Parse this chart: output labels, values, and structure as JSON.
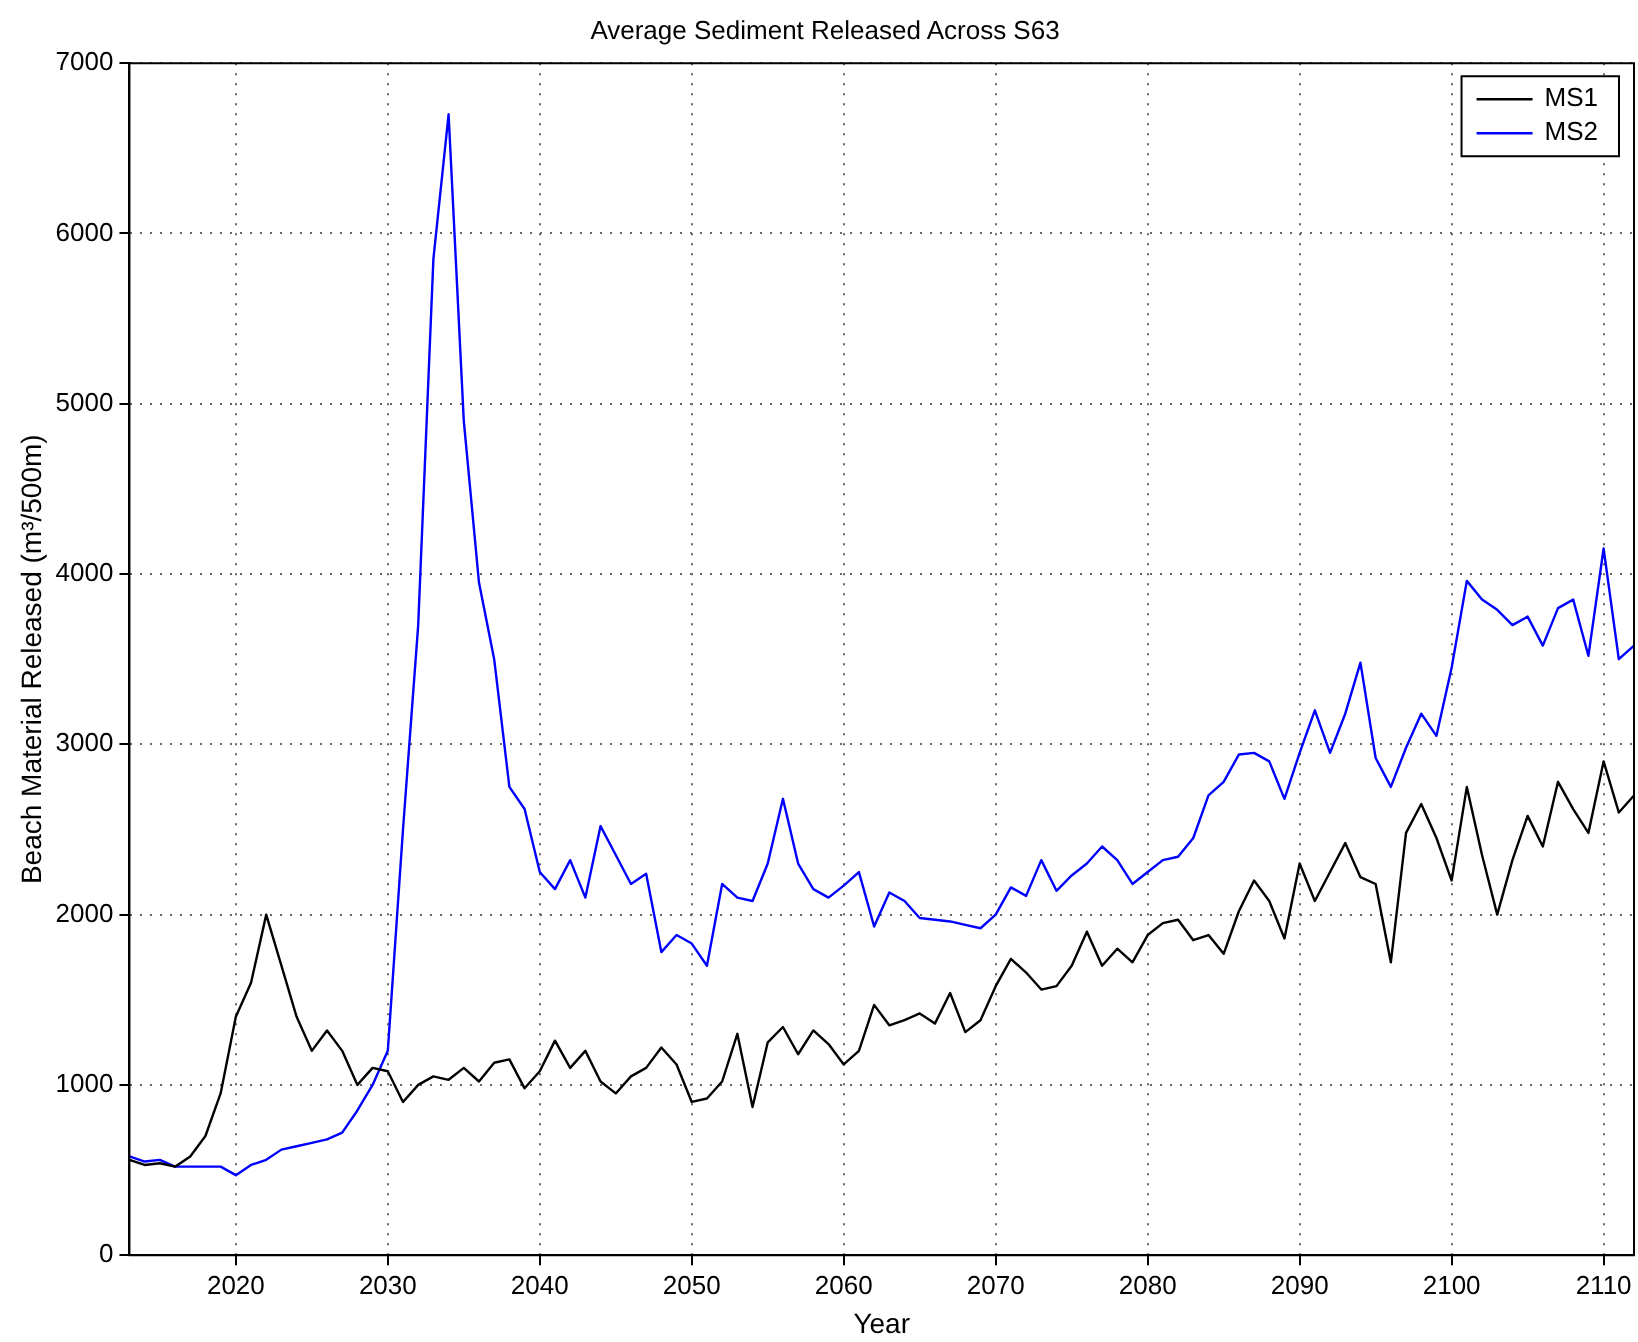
{
  "chart_data": {
    "type": "line",
    "title": "Average Sediment Released Across S63",
    "xlabel": "Year",
    "ylabel": "Beach Material Released (m³/500m)",
    "x": [
      2013,
      2014,
      2015,
      2016,
      2017,
      2018,
      2019,
      2020,
      2021,
      2022,
      2023,
      2024,
      2025,
      2026,
      2027,
      2028,
      2029,
      2030,
      2031,
      2032,
      2033,
      2034,
      2035,
      2036,
      2037,
      2038,
      2039,
      2040,
      2041,
      2042,
      2043,
      2044,
      2045,
      2046,
      2047,
      2048,
      2049,
      2050,
      2051,
      2052,
      2053,
      2054,
      2055,
      2056,
      2057,
      2058,
      2059,
      2060,
      2061,
      2062,
      2063,
      2064,
      2065,
      2066,
      2067,
      2068,
      2069,
      2070,
      2071,
      2072,
      2073,
      2074,
      2075,
      2076,
      2077,
      2078,
      2079,
      2080,
      2081,
      2082,
      2083,
      2084,
      2085,
      2086,
      2087,
      2088,
      2089,
      2090,
      2091,
      2092,
      2093,
      2094,
      2095,
      2096,
      2097,
      2098,
      2099,
      2100,
      2101,
      2102,
      2103,
      2104,
      2105,
      2106,
      2107,
      2108,
      2109,
      2110,
      2111,
      2112
    ],
    "series": [
      {
        "name": "MS1",
        "color": "#000000",
        "values": [
          560,
          530,
          540,
          520,
          580,
          700,
          950,
          1400,
          1600,
          2000,
          1700,
          1400,
          1200,
          1320,
          1200,
          1000,
          1100,
          1080,
          900,
          1000,
          1050,
          1030,
          1100,
          1020,
          1130,
          1150,
          980,
          1080,
          1260,
          1100,
          1200,
          1020,
          950,
          1050,
          1100,
          1220,
          1120,
          900,
          920,
          1020,
          1300,
          870,
          1250,
          1340,
          1180,
          1320,
          1240,
          1120,
          1200,
          1470,
          1350,
          1380,
          1420,
          1360,
          1540,
          1310,
          1380,
          1580,
          1740,
          1660,
          1560,
          1580,
          1700,
          1900,
          1700,
          1800,
          1720,
          1880,
          1950,
          1970,
          1850,
          1880,
          1770,
          2020,
          2200,
          2080,
          1860,
          2300,
          2080,
          2250,
          2420,
          2220,
          2180,
          1720,
          2480,
          2650,
          2450,
          2200,
          2750,
          2350,
          2000,
          2320,
          2580,
          2400,
          2780,
          2620,
          2480,
          2900,
          2600,
          2700
        ]
      },
      {
        "name": "MS2",
        "color": "#0000ff",
        "values": [
          580,
          550,
          560,
          520,
          520,
          520,
          520,
          470,
          530,
          560,
          620,
          640,
          660,
          680,
          720,
          850,
          1000,
          1200,
          2500,
          3700,
          5850,
          6700,
          4900,
          3950,
          3500,
          2750,
          2620,
          2250,
          2150,
          2320,
          2100,
          2520,
          2350,
          2180,
          2240,
          1780,
          1880,
          1830,
          1700,
          2180,
          2100,
          2080,
          2300,
          2680,
          2300,
          2150,
          2100,
          2170,
          2250,
          1930,
          2130,
          2080,
          1980,
          1970,
          1960,
          1940,
          1920,
          2000,
          2160,
          2110,
          2320,
          2140,
          2230,
          2300,
          2400,
          2320,
          2180,
          2250,
          2320,
          2340,
          2450,
          2700,
          2780,
          2940,
          2950,
          2900,
          2680,
          2950,
          3200,
          2950,
          3180,
          3480,
          2920,
          2750,
          2980,
          3180,
          3050,
          3450,
          3960,
          3850,
          3790,
          3700,
          3750,
          3580,
          3800,
          3850,
          3520,
          4150,
          3500,
          3580
        ]
      }
    ],
    "xlim": [
      2013,
      2112
    ],
    "xticks": [
      2020,
      2030,
      2040,
      2050,
      2060,
      2070,
      2080,
      2090,
      2100,
      2110
    ],
    "ylim": [
      0,
      7000
    ],
    "yticks": [
      0,
      1000,
      2000,
      3000,
      4000,
      5000,
      6000,
      7000
    ],
    "grid": true,
    "legend": "top right",
    "line_style": "solid"
  }
}
